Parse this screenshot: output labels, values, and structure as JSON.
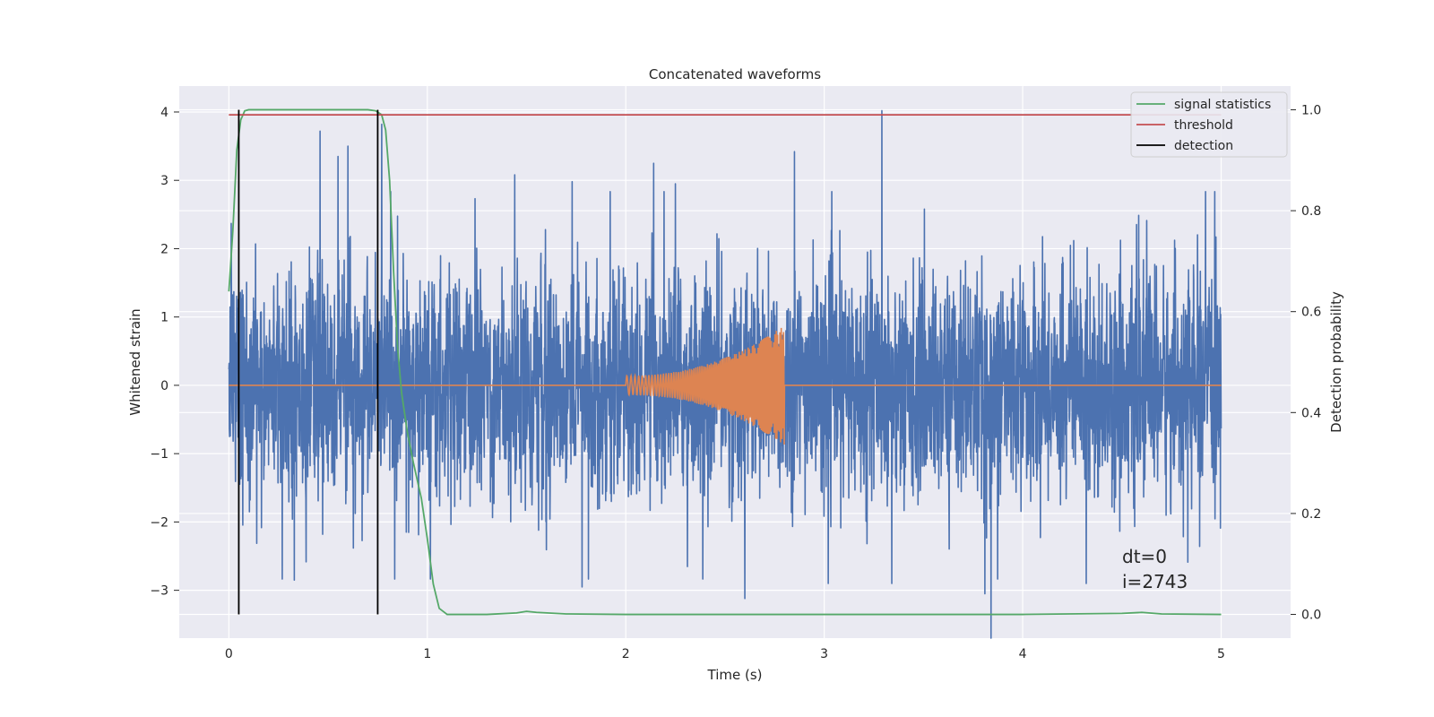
{
  "chart_data": {
    "type": "line",
    "title": "Concatenated waveforms",
    "xlabel": "Time (s)",
    "ylabel": "Whitened strain",
    "y2label": "Detection probability",
    "xlim": [
      -0.25,
      5.35
    ],
    "ylim": [
      -3.7,
      4.38
    ],
    "y2lim": [
      -0.047,
      1.047
    ],
    "xticks": [
      0,
      1,
      2,
      3,
      4,
      5
    ],
    "xtick_labels": [
      "0",
      "1",
      "2",
      "3",
      "4",
      "5"
    ],
    "yticks": [
      4,
      3,
      2,
      1,
      0,
      -1,
      -2,
      -3
    ],
    "ytick_labels": [
      "4",
      "3",
      "2",
      "1",
      "0",
      "−1",
      "−2",
      "−3"
    ],
    "y2ticks": [
      1.0,
      0.8,
      0.6,
      0.4,
      0.2,
      0.0
    ],
    "y2tick_labels": [
      "1.0",
      "0.8",
      "0.6",
      "0.4",
      "0.2",
      "0.0"
    ],
    "grid": true,
    "legend_position": "top-right",
    "colors": {
      "background": "#eaeaf2",
      "grid": "#ffffff",
      "strain": "#4c72b0",
      "template": "#dd8452",
      "signal_statistics": "#55a868",
      "threshold": "#c44e52",
      "detection": "#000000"
    },
    "series": [
      {
        "name": "",
        "axis": "left",
        "kind": "noise",
        "x_range": [
          0,
          5
        ],
        "envelope": 2.1,
        "spikes": [
          {
            "x": 0.46,
            "y": 3.72
          },
          {
            "x": 0.55,
            "y": 3.35
          },
          {
            "x": 0.6,
            "y": 3.5
          },
          {
            "x": 0.77,
            "y": 3.82
          },
          {
            "x": 1.44,
            "y": 3.08
          },
          {
            "x": 2.14,
            "y": 3.25
          },
          {
            "x": 2.25,
            "y": 2.95
          },
          {
            "x": 2.85,
            "y": 3.42
          },
          {
            "x": 3.29,
            "y": 4.02
          },
          {
            "x": 1.73,
            "y": 2.98
          },
          {
            "x": 0.33,
            "y": -2.85
          },
          {
            "x": 1.78,
            "y": -2.95
          },
          {
            "x": 2.6,
            "y": -3.12
          },
          {
            "x": 3.02,
            "y": -2.9
          },
          {
            "x": 3.34,
            "y": -2.9
          },
          {
            "x": 3.84,
            "y": -3.7
          },
          {
            "x": 3.81,
            "y": -3.05
          },
          {
            "x": 4.32,
            "y": -2.9
          }
        ]
      },
      {
        "name": "",
        "axis": "left",
        "kind": "chirp",
        "x_range": [
          0,
          5
        ],
        "chirp_start": 2.0,
        "chirp_end": 2.8,
        "amp_start": 0.14,
        "amp_end": 0.88
      },
      {
        "name": "signal statistics",
        "axis": "right",
        "x": [
          0,
          0.02,
          0.04,
          0.06,
          0.08,
          0.1,
          0.2,
          0.4,
          0.6,
          0.7,
          0.74,
          0.77,
          0.79,
          0.81,
          0.83,
          0.85,
          0.87,
          0.9,
          0.93,
          0.97,
          1.0,
          1.03,
          1.06,
          1.1,
          1.3,
          1.45,
          1.5,
          1.55,
          1.7,
          2.0,
          3.0,
          4.0,
          4.5,
          4.6,
          4.7,
          5.0
        ],
        "y": [
          0.64,
          0.76,
          0.92,
          0.98,
          0.998,
          1.0,
          1.0,
          1.0,
          1.0,
          1.0,
          0.998,
          0.99,
          0.96,
          0.86,
          0.68,
          0.53,
          0.44,
          0.36,
          0.3,
          0.23,
          0.15,
          0.06,
          0.012,
          0.0,
          0.0,
          0.003,
          0.006,
          0.004,
          0.001,
          0.0,
          0.0,
          0.0,
          0.002,
          0.004,
          0.001,
          0.0
        ]
      },
      {
        "name": "threshold",
        "axis": "right",
        "x": [
          0,
          5
        ],
        "y": [
          0.99,
          0.99
        ]
      },
      {
        "name": "detection",
        "axis": "right",
        "kind": "vlines",
        "x": [
          0.05,
          0.75
        ],
        "y_range": [
          0.0,
          1.0
        ]
      }
    ],
    "annotation": [
      "dt=0",
      "i=2743"
    ]
  }
}
